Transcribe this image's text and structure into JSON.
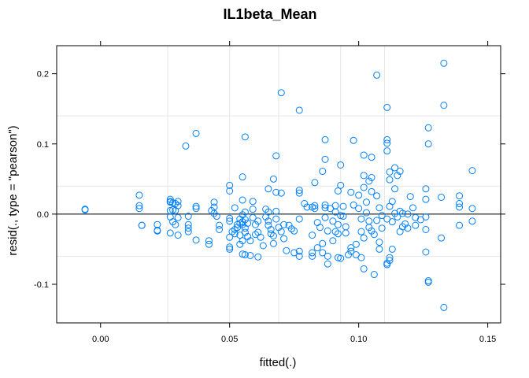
{
  "chart_data": {
    "type": "scatter",
    "title": "IL1beta_Mean",
    "xlabel": "fitted(.)",
    "ylabel": "resid(., type = \"pearson\")",
    "xlim": [
      -0.017,
      0.155
    ],
    "ylim": [
      -0.155,
      0.24
    ],
    "x_ticks": [
      0.0,
      0.05,
      0.1,
      0.15
    ],
    "x_tick_labels": [
      "0.00",
      "0.05",
      "0.10",
      "0.15"
    ],
    "y_ticks": [
      -0.1,
      0.0,
      0.1,
      0.2
    ],
    "y_tick_labels": [
      "-0.1",
      "0.0",
      "0.1",
      "0.2"
    ],
    "x_grid": [
      0.026,
      0.05,
      0.069,
      0.093,
      0.11
    ],
    "y_grid": [
      -0.06,
      0.0,
      0.04,
      0.14
    ],
    "grid": true,
    "reference_line_y": 0,
    "point_color": "#0080ff",
    "series": [
      {
        "values": [
          [
            -0.006,
            0.007
          ],
          [
            -0.006,
            0.006
          ],
          [
            0.015,
            0.027
          ],
          [
            0.015,
            0.012
          ],
          [
            0.015,
            0.008
          ],
          [
            0.016,
            -0.016
          ],
          [
            0.016,
            -0.016
          ],
          [
            0.022,
            -0.015
          ],
          [
            0.022,
            -0.023
          ],
          [
            0.022,
            -0.024
          ],
          [
            0.027,
            0.021
          ],
          [
            0.027,
            0.018
          ],
          [
            0.027,
            0.017
          ],
          [
            0.027,
            0.005
          ],
          [
            0.027,
            -0.004
          ],
          [
            0.027,
            -0.027
          ],
          [
            0.028,
            0.016
          ],
          [
            0.028,
            0.006
          ],
          [
            0.028,
            -0.011
          ],
          [
            0.029,
            0.015
          ],
          [
            0.029,
            0.005
          ],
          [
            0.029,
            -0.015
          ],
          [
            0.03,
            0.018
          ],
          [
            0.03,
            -0.03
          ],
          [
            0.03,
            0.012
          ],
          [
            0.03,
            -0.005
          ],
          [
            0.033,
            0.097
          ],
          [
            0.034,
            -0.015
          ],
          [
            0.034,
            -0.02
          ],
          [
            0.034,
            -0.025
          ],
          [
            0.034,
            -0.003
          ],
          [
            0.037,
            0.115
          ],
          [
            0.037,
            0.011
          ],
          [
            0.037,
            0.008
          ],
          [
            0.037,
            -0.037
          ],
          [
            0.042,
            -0.038
          ],
          [
            0.042,
            -0.043
          ],
          [
            0.043,
            0.005
          ],
          [
            0.044,
            0.017
          ],
          [
            0.044,
            0.01
          ],
          [
            0.044,
            0.001
          ],
          [
            0.045,
            -0.003
          ],
          [
            0.046,
            -0.016
          ],
          [
            0.046,
            -0.022
          ],
          [
            0.05,
            0.041
          ],
          [
            0.05,
            0.033
          ],
          [
            0.05,
            -0.006
          ],
          [
            0.05,
            -0.01
          ],
          [
            0.05,
            -0.033
          ],
          [
            0.05,
            -0.047
          ],
          [
            0.05,
            -0.05
          ],
          [
            0.051,
            -0.025
          ],
          [
            0.052,
            0.009
          ],
          [
            0.052,
            -0.022
          ],
          [
            0.052,
            -0.028
          ],
          [
            0.053,
            -0.015
          ],
          [
            0.053,
            -0.019
          ],
          [
            0.054,
            -0.007
          ],
          [
            0.054,
            -0.013
          ],
          [
            0.054,
            -0.03
          ],
          [
            0.054,
            -0.043
          ],
          [
            0.055,
            0.053
          ],
          [
            0.055,
            0.02
          ],
          [
            0.055,
            -0.001
          ],
          [
            0.055,
            -0.011
          ],
          [
            0.055,
            -0.015
          ],
          [
            0.055,
            -0.038
          ],
          [
            0.055,
            -0.057
          ],
          [
            0.056,
            0.11
          ],
          [
            0.056,
            0.003
          ],
          [
            0.056,
            -0.008
          ],
          [
            0.056,
            -0.02
          ],
          [
            0.056,
            -0.026
          ],
          [
            0.056,
            -0.058
          ],
          [
            0.057,
            -0.013
          ],
          [
            0.057,
            -0.032
          ],
          [
            0.058,
            -0.038
          ],
          [
            0.058,
            -0.059
          ],
          [
            0.059,
            0.018
          ],
          [
            0.059,
            0.007
          ],
          [
            0.059,
            -0.005
          ],
          [
            0.06,
            -0.015
          ],
          [
            0.06,
            -0.029
          ],
          [
            0.061,
            -0.01
          ],
          [
            0.061,
            -0.026
          ],
          [
            0.061,
            -0.061
          ],
          [
            0.062,
            -0.033
          ],
          [
            0.063,
            -0.045
          ],
          [
            0.064,
            0.007
          ],
          [
            0.064,
            -0.004
          ],
          [
            0.065,
            0.036
          ],
          [
            0.065,
            0.003
          ],
          [
            0.065,
            -0.01
          ],
          [
            0.065,
            -0.016
          ],
          [
            0.066,
            -0.022
          ],
          [
            0.066,
            -0.028
          ],
          [
            0.067,
            0.05
          ],
          [
            0.067,
            -0.031
          ],
          [
            0.067,
            -0.042
          ],
          [
            0.068,
            0.031
          ],
          [
            0.068,
            0.083
          ],
          [
            0.068,
            0.004
          ],
          [
            0.068,
            -0.007
          ],
          [
            0.069,
            -0.019
          ],
          [
            0.07,
            0.173
          ],
          [
            0.07,
            0.03
          ],
          [
            0.07,
            -0.025
          ],
          [
            0.071,
            -0.035
          ],
          [
            0.071,
            -0.015
          ],
          [
            0.072,
            -0.052
          ],
          [
            0.073,
            -0.016
          ],
          [
            0.074,
            -0.021
          ],
          [
            0.075,
            -0.024
          ],
          [
            0.075,
            -0.055
          ],
          [
            0.077,
            0.148
          ],
          [
            0.077,
            0.034
          ],
          [
            0.077,
            0.03
          ],
          [
            0.077,
            -0.007
          ],
          [
            0.077,
            -0.053
          ],
          [
            0.077,
            -0.06
          ],
          [
            0.079,
            0.015
          ],
          [
            0.08,
            0.01
          ],
          [
            0.082,
            0.01
          ],
          [
            0.082,
            -0.03
          ],
          [
            0.082,
            -0.055
          ],
          [
            0.082,
            -0.06
          ],
          [
            0.083,
            0.045
          ],
          [
            0.083,
            0.012
          ],
          [
            0.083,
            0.008
          ],
          [
            0.084,
            -0.012
          ],
          [
            0.084,
            -0.048
          ],
          [
            0.085,
            -0.019
          ],
          [
            0.086,
            0.061
          ],
          [
            0.086,
            -0.042
          ],
          [
            0.086,
            -0.055
          ],
          [
            0.087,
            0.106
          ],
          [
            0.087,
            0.078
          ],
          [
            0.087,
            0.013
          ],
          [
            0.087,
            0.009
          ],
          [
            0.087,
            -0.005
          ],
          [
            0.088,
            -0.024
          ],
          [
            0.088,
            -0.06
          ],
          [
            0.088,
            -0.071
          ],
          [
            0.089,
            0.008
          ],
          [
            0.09,
            -0.01
          ],
          [
            0.09,
            -0.038
          ],
          [
            0.091,
            0.012
          ],
          [
            0.091,
            0.003
          ],
          [
            0.091,
            -0.025
          ],
          [
            0.092,
            0.033
          ],
          [
            0.092,
            -0.015
          ],
          [
            0.092,
            -0.028
          ],
          [
            0.092,
            -0.062
          ],
          [
            0.093,
            0.07
          ],
          [
            0.093,
            0.041
          ],
          [
            0.093,
            -0.002
          ],
          [
            0.093,
            -0.063
          ],
          [
            0.094,
            0.011
          ],
          [
            0.094,
            -0.003
          ],
          [
            0.095,
            -0.018
          ],
          [
            0.095,
            -0.027
          ],
          [
            0.096,
            -0.058
          ],
          [
            0.097,
            0.031
          ],
          [
            0.097,
            -0.048
          ],
          [
            0.097,
            -0.053
          ],
          [
            0.098,
            0.105
          ],
          [
            0.098,
            0.013
          ],
          [
            0.099,
            -0.043
          ],
          [
            0.099,
            -0.058
          ],
          [
            0.1,
            0.027
          ],
          [
            0.1,
            0.008
          ],
          [
            0.101,
            -0.007
          ],
          [
            0.101,
            -0.025
          ],
          [
            0.101,
            -0.062
          ],
          [
            0.102,
            0.084
          ],
          [
            0.102,
            0.055
          ],
          [
            0.102,
            0.038
          ],
          [
            0.102,
            -0.034
          ],
          [
            0.102,
            -0.078
          ],
          [
            0.103,
            0.017
          ],
          [
            0.103,
            0.002
          ],
          [
            0.104,
            0.047
          ],
          [
            0.104,
            -0.01
          ],
          [
            0.104,
            -0.019
          ],
          [
            0.105,
            0.081
          ],
          [
            0.105,
            0.052
          ],
          [
            0.105,
            0.032
          ],
          [
            0.105,
            -0.024
          ],
          [
            0.106,
            -0.029
          ],
          [
            0.106,
            -0.086
          ],
          [
            0.107,
            0.198
          ],
          [
            0.107,
            0.026
          ],
          [
            0.107,
            -0.009
          ],
          [
            0.108,
            0.009
          ],
          [
            0.108,
            -0.04
          ],
          [
            0.108,
            -0.05
          ],
          [
            0.109,
            -0.002
          ],
          [
            0.109,
            -0.02
          ],
          [
            0.111,
            0.152
          ],
          [
            0.111,
            0.106
          ],
          [
            0.111,
            0.101
          ],
          [
            0.111,
            0.09
          ],
          [
            0.111,
            -0.007
          ],
          [
            0.111,
            -0.07
          ],
          [
            0.111,
            -0.072
          ],
          [
            0.112,
            0.06
          ],
          [
            0.112,
            0.049
          ],
          [
            0.112,
            0.011
          ],
          [
            0.112,
            -0.062
          ],
          [
            0.112,
            -0.066
          ],
          [
            0.113,
            0.018
          ],
          [
            0.113,
            -0.011
          ],
          [
            0.113,
            -0.05
          ],
          [
            0.114,
            0.066
          ],
          [
            0.114,
            0.036
          ],
          [
            0.114,
            0.001
          ],
          [
            0.115,
            0.055
          ],
          [
            0.115,
            -0.004
          ],
          [
            0.116,
            0.061
          ],
          [
            0.116,
            0.004
          ],
          [
            0.116,
            -0.025
          ],
          [
            0.117,
            0.001
          ],
          [
            0.117,
            -0.018
          ],
          [
            0.118,
            -0.014
          ],
          [
            0.119,
            0.0
          ],
          [
            0.119,
            -0.02
          ],
          [
            0.12,
            0.025
          ],
          [
            0.121,
            0.009
          ],
          [
            0.122,
            -0.005
          ],
          [
            0.122,
            -0.016
          ],
          [
            0.124,
            -0.008
          ],
          [
            0.126,
            0.036
          ],
          [
            0.126,
            0.021
          ],
          [
            0.126,
            -0.004
          ],
          [
            0.126,
            -0.022
          ],
          [
            0.126,
            -0.054
          ],
          [
            0.127,
            0.123
          ],
          [
            0.127,
            0.1
          ],
          [
            0.127,
            -0.095
          ],
          [
            0.127,
            -0.097
          ],
          [
            0.132,
            0.024
          ],
          [
            0.132,
            -0.034
          ],
          [
            0.133,
            0.215
          ],
          [
            0.133,
            0.155
          ],
          [
            0.133,
            -0.133
          ],
          [
            0.139,
            0.026
          ],
          [
            0.139,
            0.015
          ],
          [
            0.139,
            0.01
          ],
          [
            0.139,
            -0.016
          ],
          [
            0.144,
            0.062
          ],
          [
            0.144,
            0.008
          ],
          [
            0.144,
            -0.01
          ]
        ]
      }
    ]
  }
}
